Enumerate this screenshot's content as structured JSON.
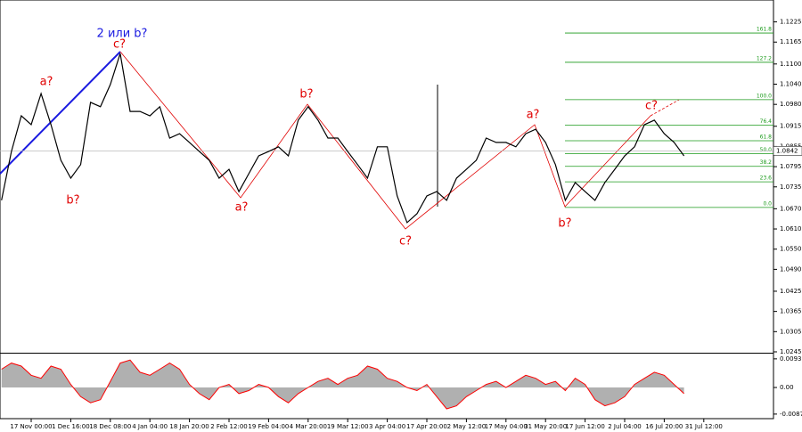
{
  "chart_data": [
    {
      "type": "line",
      "color": "#000000",
      "categories": [
        null,
        null,
        null,
        "17 Nov 00:00",
        null,
        null,
        null,
        "1 Dec 16:00",
        null,
        null,
        null,
        "18 Dec 08:00",
        null,
        null,
        null,
        "4 Jan 04:00",
        null,
        null,
        null,
        "18 Jan 20:00",
        null,
        null,
        null,
        "2 Feb 12:00",
        null,
        null,
        null,
        "19 Feb 04:00",
        null,
        null,
        null,
        "4 Mar 20:00",
        null,
        null,
        null,
        "19 Mar 12:00",
        null,
        null,
        null,
        "3 Apr 04:00",
        null,
        null,
        null,
        "17 Apr 20:00",
        null,
        null,
        null,
        "2 May 12:00",
        null,
        null,
        null,
        "17 May 04:00",
        null,
        null,
        null,
        "31 May 20:00",
        null,
        null,
        null,
        "17 Jun 12:00",
        null,
        null,
        null,
        "2 Jul 04:00",
        null,
        null,
        null,
        "16 Jul 20:00",
        null,
        null,
        null,
        "31 Jul 12:00"
      ],
      "values": [
        1.0695,
        1.084,
        1.0946,
        1.092,
        1.1012,
        1.092,
        1.0814,
        1.0761,
        1.0801,
        1.0986,
        1.0973,
        1.1039,
        1.1131,
        1.0959,
        1.0959,
        1.0946,
        1.0973,
        1.088,
        1.0893,
        1.0867,
        1.084,
        1.0814,
        1.0761,
        1.0787,
        1.0721,
        1.0774,
        1.0827,
        1.084,
        1.0854,
        1.0827,
        1.0933,
        1.0973,
        1.0933,
        1.088,
        1.088,
        1.084,
        1.0801,
        1.0761,
        1.0854,
        1.0854,
        1.0708,
        1.0629,
        1.0655,
        1.0708,
        1.0721,
        1.0695,
        1.0761,
        1.0787,
        1.0814,
        1.088,
        1.0867,
        1.0867,
        1.0854,
        1.0893,
        1.0906,
        1.0867,
        1.0801,
        1.0695,
        1.0748,
        1.0721,
        1.0695,
        1.0748,
        1.0787,
        1.0827,
        1.0854,
        1.092,
        1.0933,
        1.0893,
        1.0867,
        1.0827,
        null,
        null
      ],
      "ylim": [
        1.0245,
        1.129
      ],
      "yticks": [
        1.1225,
        1.1165,
        {
          "value": 1.11,
          "label": "1.1100"
        },
        {
          "value": 1.104,
          "label": "1.1040"
        },
        {
          "value": 1.098,
          "label": "1.0980"
        },
        1.0915,
        1.0855,
        1.0795,
        1.0735,
        {
          "value": 1.067,
          "label": "1.0670"
        },
        {
          "value": 1.061,
          "label": "1.0610"
        },
        {
          "value": 1.055,
          "label": "1.0550"
        },
        {
          "value": 1.049,
          "label": "1.0490"
        },
        1.0425,
        1.0365,
        1.0305,
        1.0245
      ],
      "current_price": 1.0842,
      "fib_levels": [
        {
          "value": 1.1192,
          "label": "161.8"
        },
        {
          "value": 1.1105,
          "label": "127.2"
        },
        {
          "value": 1.0994,
          "label": "100.0"
        },
        {
          "value": 1.0918,
          "label": "76.4"
        },
        {
          "value": 1.0872,
          "label": "61.8"
        },
        {
          "value": 1.0834,
          "label": "50.0"
        },
        {
          "value": 1.0796,
          "label": "38.2"
        },
        {
          "value": 1.075,
          "label": "23.6"
        },
        {
          "value": 1.0674,
          "label": "0.0"
        }
      ],
      "annotations": [
        "2 или b?",
        "a?",
        "b?",
        "c?",
        "a?",
        "b?",
        "c?",
        "a?",
        "b?",
        "c?"
      ]
    },
    {
      "type": "area",
      "color": "#ff0000",
      "values": [
        0.006,
        0.008,
        0.007,
        0.004,
        0.003,
        0.007,
        0.006,
        0.001,
        -0.003,
        -0.005,
        -0.004,
        0.002,
        0.008,
        0.009,
        0.005,
        0.004,
        0.006,
        0.008,
        0.006,
        0.001,
        -0.002,
        -0.004,
        0.0,
        0.001,
        -0.002,
        -0.001,
        0.001,
        0.0,
        -0.003,
        -0.005,
        -0.002,
        0.0,
        0.002,
        0.003,
        0.001,
        0.003,
        0.004,
        0.007,
        0.006,
        0.003,
        0.002,
        0.0,
        -0.001,
        0.001,
        -0.003,
        -0.007,
        -0.006,
        -0.003,
        -0.001,
        0.001,
        0.002,
        0.0,
        0.002,
        0.004,
        0.003,
        0.001,
        0.002,
        -0.001,
        0.003,
        0.001,
        -0.004,
        -0.006,
        -0.005,
        -0.003,
        0.001,
        0.003,
        0.005,
        0.004,
        0.001,
        -0.002,
        null,
        null
      ],
      "ylim": [
        -0.0102,
        0.0108
      ],
      "yticks": [
        0.00938,
        {
          "value": 0,
          "label": "0.00"
        },
        -0.00871
      ]
    }
  ]
}
